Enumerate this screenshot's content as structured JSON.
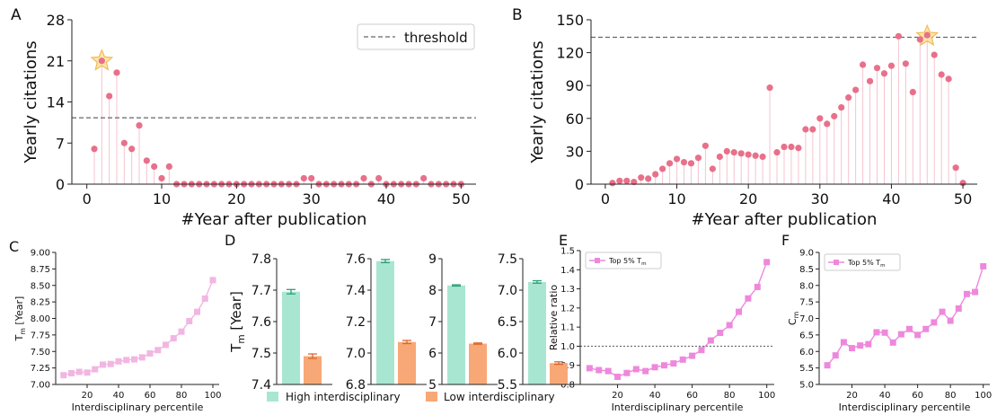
{
  "chart_data": [
    {
      "panel": "A",
      "type": "scatter",
      "style": "stem",
      "xlabel": "#Year after publication",
      "ylabel": "Yearly citations",
      "xlim": [
        -2,
        52
      ],
      "ylim": [
        0,
        28
      ],
      "xticks": [
        0,
        10,
        20,
        30,
        40,
        50
      ],
      "yticks": [
        0,
        7,
        14,
        21,
        28
      ],
      "threshold": 11.3,
      "legend": {
        "label": "threshold",
        "placement": "top-right"
      },
      "star": {
        "x": 2,
        "y": 21
      },
      "color": "#e8708a",
      "x": [
        1,
        2,
        3,
        4,
        5,
        6,
        7,
        8,
        9,
        10,
        11,
        12,
        13,
        14,
        15,
        16,
        17,
        18,
        19,
        20,
        21,
        22,
        23,
        24,
        25,
        26,
        27,
        28,
        29,
        30,
        31,
        32,
        33,
        34,
        35,
        36,
        37,
        38,
        39,
        40,
        41,
        42,
        43,
        44,
        45,
        46,
        47,
        48,
        49,
        50
      ],
      "values": [
        6,
        21,
        15,
        19,
        7,
        6,
        10,
        4,
        3,
        1,
        3,
        0,
        0,
        0,
        0,
        0,
        0,
        0,
        0,
        0,
        0,
        0,
        0,
        0,
        0,
        0,
        0,
        0,
        1,
        1,
        0,
        0,
        0,
        0,
        0,
        0,
        1,
        0,
        1,
        0,
        0,
        0,
        0,
        0,
        1,
        0,
        0,
        0,
        0,
        0
      ]
    },
    {
      "panel": "B",
      "type": "scatter",
      "style": "stem",
      "xlabel": "#Year after publication",
      "ylabel": "Yearly citations",
      "xlim": [
        -2,
        52
      ],
      "ylim": [
        0,
        150
      ],
      "xticks": [
        0,
        10,
        20,
        30,
        40,
        50
      ],
      "yticks": [
        0,
        30,
        60,
        90,
        120,
        150
      ],
      "threshold": 134,
      "star": {
        "x": 45,
        "y": 135
      },
      "color": "#e8708a",
      "x": [
        1,
        2,
        3,
        4,
        5,
        6,
        7,
        8,
        9,
        10,
        11,
        12,
        13,
        14,
        15,
        16,
        17,
        18,
        19,
        20,
        21,
        22,
        23,
        24,
        25,
        26,
        27,
        28,
        29,
        30,
        31,
        32,
        33,
        34,
        35,
        36,
        37,
        38,
        39,
        40,
        41,
        42,
        43,
        44,
        45,
        46,
        47,
        48,
        49,
        50
      ],
      "values": [
        1,
        3,
        3,
        2,
        6,
        5,
        9,
        14,
        19,
        23,
        20,
        19,
        24,
        35,
        14,
        25,
        30,
        29,
        28,
        27,
        26,
        25,
        88,
        29,
        34,
        34,
        33,
        50,
        50,
        60,
        55,
        62,
        70,
        79,
        86,
        109,
        94,
        106,
        101,
        108,
        135,
        110,
        84,
        132,
        136,
        118,
        100,
        96,
        15,
        1
      ]
    },
    {
      "panel": "C",
      "type": "line",
      "xlabel": "Interdisciplinary percentile",
      "ylabel": "T",
      "ylabel_sub": "m",
      "ylabel_tail": " [Year]",
      "xlim": [
        0,
        104
      ],
      "ylim": [
        7.0,
        9.0
      ],
      "xticks": [
        20,
        40,
        60,
        80,
        100
      ],
      "yticks": [
        7.0,
        7.25,
        7.5,
        7.75,
        8.0,
        8.25,
        8.5,
        8.75,
        9.0
      ],
      "ytick_labels": [
        "7.00",
        "7.25",
        "7.50",
        "7.75",
        "8.00",
        "8.25",
        "8.50",
        "8.75",
        "9.00"
      ],
      "color": "#f2b6e2",
      "x": [
        5,
        10,
        15,
        20,
        25,
        30,
        35,
        40,
        45,
        50,
        55,
        60,
        65,
        70,
        75,
        80,
        85,
        90,
        95,
        100
      ],
      "values": [
        7.14,
        7.17,
        7.19,
        7.18,
        7.23,
        7.3,
        7.31,
        7.35,
        7.37,
        7.38,
        7.41,
        7.47,
        7.52,
        7.6,
        7.7,
        7.8,
        7.96,
        8.1,
        8.3,
        8.58
      ]
    },
    {
      "panel": "D",
      "type": "bar",
      "ylabel": "T",
      "ylabel_sub": "m",
      "ylabel_tail": " [Year]",
      "legend": {
        "entries": [
          "High interdisciplinary",
          "Low interdisciplinary"
        ],
        "placement": "bottom"
      },
      "colors": [
        "#a8e6d2",
        "#f8a876"
      ],
      "error_colors": [
        "#2f9e78",
        "#d8682e"
      ],
      "subplots": [
        {
          "ylim": [
            7.4,
            7.8
          ],
          "yticks": [
            "7.4",
            "7.5",
            "7.6",
            "7.7",
            "7.8"
          ],
          "values": [
            7.695,
            7.49
          ],
          "errors": [
            0.007,
            0.007
          ]
        },
        {
          "ylim": [
            6.8,
            7.6
          ],
          "yticks": [
            "6.8",
            "7.0",
            "7.2",
            "7.4",
            "7.6"
          ],
          "values": [
            7.585,
            7.07
          ],
          "errors": [
            0.01,
            0.01
          ]
        },
        {
          "ylim": [
            5.0,
            9.0
          ],
          "yticks": [
            "5",
            "6",
            "7",
            "8",
            "9"
          ],
          "values": [
            8.15,
            6.3
          ],
          "errors": [
            0.02,
            0.02
          ]
        },
        {
          "ylim": [
            5.5,
            7.5
          ],
          "yticks": [
            "5.5",
            "6.0",
            "6.5",
            "7.0",
            "7.5"
          ],
          "values": [
            7.13,
            5.84
          ],
          "errors": [
            0.02,
            0.02
          ]
        }
      ]
    },
    {
      "panel": "E",
      "type": "line",
      "xlabel": "Interdisciplinary percentile",
      "ylabel": "Relative ratio",
      "xlim": [
        0,
        104
      ],
      "ylim": [
        0.8,
        1.5
      ],
      "xticks": [
        20,
        40,
        60,
        80,
        100
      ],
      "yticks": [
        0.8,
        0.9,
        1.0,
        1.1,
        1.2,
        1.3,
        1.4,
        1.5
      ],
      "ytick_labels": [
        "0.8",
        "0.9",
        "1.0",
        "1.1",
        "1.2",
        "1.3",
        "1.4",
        "1.5"
      ],
      "reference_line": 1.0,
      "legend": {
        "label": "Top 5% T",
        "label_sub": "m",
        "placement": "top-left"
      },
      "color": "#ee88dc",
      "x": [
        5,
        10,
        15,
        20,
        25,
        30,
        35,
        40,
        45,
        50,
        55,
        60,
        65,
        70,
        75,
        80,
        85,
        90,
        95,
        100
      ],
      "values": [
        0.885,
        0.875,
        0.87,
        0.84,
        0.86,
        0.88,
        0.87,
        0.89,
        0.9,
        0.91,
        0.93,
        0.95,
        0.98,
        1.03,
        1.07,
        1.11,
        1.18,
        1.25,
        1.31,
        1.44
      ]
    },
    {
      "panel": "F",
      "type": "line",
      "xlabel": "Interdisciplinary percentile",
      "ylabel": "C",
      "ylabel_sub": "m",
      "xlim": [
        0,
        104
      ],
      "ylim": [
        5.0,
        9.0
      ],
      "xticks": [
        20,
        40,
        60,
        80,
        100
      ],
      "yticks": [
        5.0,
        5.5,
        6.0,
        6.5,
        7.0,
        7.5,
        8.0,
        8.5,
        9.0
      ],
      "ytick_labels": [
        "5.0",
        "5.5",
        "6.0",
        "6.5",
        "7.0",
        "7.5",
        "8.0",
        "8.5",
        "9.0"
      ],
      "legend": {
        "label": "Top 5% T",
        "label_sub": "m",
        "placement": "top-left"
      },
      "color": "#ee88dc",
      "x": [
        5,
        10,
        15,
        20,
        25,
        30,
        35,
        40,
        45,
        50,
        55,
        60,
        65,
        70,
        75,
        80,
        85,
        90,
        95,
        100
      ],
      "values": [
        5.58,
        5.88,
        6.28,
        6.1,
        6.18,
        6.22,
        6.58,
        6.57,
        6.27,
        6.52,
        6.68,
        6.5,
        6.68,
        6.88,
        7.2,
        6.93,
        7.3,
        7.74,
        7.8,
        8.58
      ]
    }
  ]
}
